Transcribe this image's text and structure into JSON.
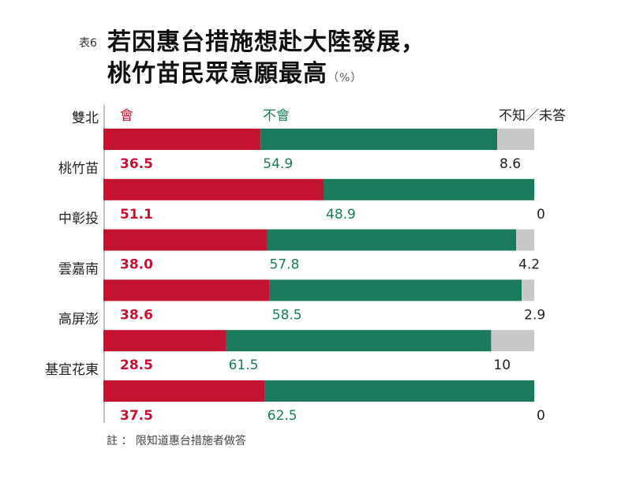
{
  "title": {
    "tag": "表6",
    "line1": "若因惠台措施想赴大陸發展，",
    "line2": "桃竹苗民眾意願最高",
    "unit": "（%）"
  },
  "note": "註 ： 限知道惠台措施者做答",
  "colors": {
    "yes": "#c41232",
    "no": "#1b7a5c",
    "unknown": "#c8c8c8",
    "axis": "#aaaaaa"
  },
  "chart_data": {
    "type": "bar",
    "orientation": "horizontal",
    "stacked": true,
    "xlim": [
      0,
      100
    ],
    "categories": [
      "雙北",
      "桃竹苗",
      "中彰投",
      "雲嘉南",
      "高屏澎",
      "基宜花東"
    ],
    "series": [
      {
        "name": "會",
        "values": [
          36.5,
          51.1,
          38.0,
          38.6,
          28.5,
          37.5
        ],
        "labels": [
          "36.5",
          "51.1",
          "38.0",
          "38.6",
          "28.5",
          "37.5"
        ]
      },
      {
        "name": "不會",
        "values": [
          54.9,
          48.9,
          57.8,
          58.5,
          61.5,
          62.5
        ],
        "labels": [
          "54.9",
          "48.9",
          "57.8",
          "58.5",
          "61.5",
          "62.5"
        ]
      },
      {
        "name": "不知／未答",
        "values": [
          8.6,
          0,
          4.2,
          2.9,
          10,
          0
        ],
        "labels": [
          "8.6",
          "0",
          "4.2",
          "2.9",
          "10",
          "0"
        ]
      }
    ]
  }
}
